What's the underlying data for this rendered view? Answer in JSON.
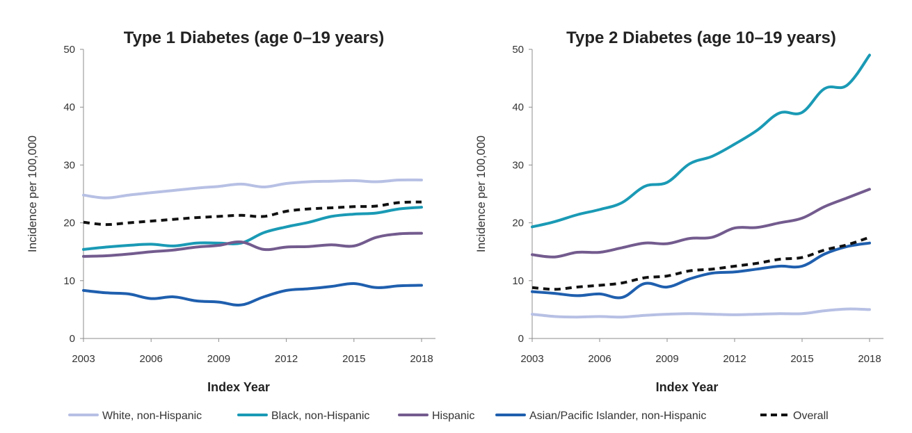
{
  "chart_data": [
    {
      "type": "line",
      "title": "Type 1 Diabetes (age 0–19 years)",
      "xlabel": "Index Year",
      "ylabel": "Incidence per 100,000",
      "xlim": [
        2003,
        2018
      ],
      "ylim": [
        0,
        50
      ],
      "xticks": [
        "2003",
        "2006",
        "2009",
        "2012",
        "2015",
        "2018"
      ],
      "yticks": [
        "0",
        "10",
        "20",
        "30",
        "40",
        "50"
      ],
      "x": [
        2003,
        2004,
        2005,
        2006,
        2007,
        2008,
        2009,
        2010,
        2011,
        2012,
        2013,
        2014,
        2015,
        2016,
        2017,
        2018
      ],
      "series": [
        {
          "name": "White, non-Hispanic",
          "color": "#b7c0e4",
          "dash": false,
          "values": [
            24.8,
            24.3,
            24.8,
            25.2,
            25.6,
            26.0,
            26.3,
            26.7,
            26.2,
            26.8,
            27.1,
            27.2,
            27.3,
            27.1,
            27.4,
            27.4
          ]
        },
        {
          "name": "Black, non-Hispanic",
          "color": "#1a9ab5",
          "dash": false,
          "values": [
            15.4,
            15.8,
            16.1,
            16.3,
            16.0,
            16.5,
            16.5,
            16.5,
            18.3,
            19.3,
            20.1,
            21.1,
            21.5,
            21.7,
            22.4,
            22.7
          ]
        },
        {
          "name": "Hispanic",
          "color": "#735b8e",
          "dash": false,
          "values": [
            14.2,
            14.3,
            14.6,
            15.0,
            15.3,
            15.8,
            16.1,
            16.7,
            15.4,
            15.8,
            15.9,
            16.2,
            16.0,
            17.5,
            18.1,
            18.2
          ]
        },
        {
          "name": "Asian/Pacific Islander, non-Hispanic",
          "color": "#1f5fae",
          "dash": false,
          "values": [
            8.3,
            7.9,
            7.7,
            6.9,
            7.2,
            6.5,
            6.3,
            5.8,
            7.2,
            8.3,
            8.6,
            9.0,
            9.5,
            8.8,
            9.1,
            9.2
          ]
        },
        {
          "name": "Overall",
          "color": "#111111",
          "dash": true,
          "values": [
            20.1,
            19.7,
            20.0,
            20.3,
            20.6,
            20.9,
            21.1,
            21.3,
            21.1,
            22.0,
            22.4,
            22.6,
            22.8,
            22.9,
            23.5,
            23.6
          ]
        }
      ]
    },
    {
      "type": "line",
      "title": "Type 2 Diabetes (age 10–19 years)",
      "xlabel": "Index Year",
      "ylabel": "Incidence per 100,000",
      "xlim": [
        2003,
        2018
      ],
      "ylim": [
        0,
        50
      ],
      "xticks": [
        "2003",
        "2006",
        "2009",
        "2012",
        "2015",
        "2018"
      ],
      "yticks": [
        "0",
        "10",
        "20",
        "30",
        "40",
        "50"
      ],
      "x": [
        2003,
        2004,
        2005,
        2006,
        2007,
        2008,
        2009,
        2010,
        2011,
        2012,
        2013,
        2014,
        2015,
        2016,
        2017,
        2018
      ],
      "series": [
        {
          "name": "White, non-Hispanic",
          "color": "#b7c0e4",
          "dash": false,
          "values": [
            4.2,
            3.8,
            3.7,
            3.8,
            3.7,
            4.0,
            4.2,
            4.3,
            4.2,
            4.1,
            4.2,
            4.3,
            4.3,
            4.8,
            5.1,
            5.0
          ]
        },
        {
          "name": "Black, non-Hispanic",
          "color": "#1a9ab5",
          "dash": false,
          "values": [
            19.3,
            20.2,
            21.4,
            22.3,
            23.5,
            26.3,
            27.0,
            30.2,
            31.5,
            33.6,
            36.0,
            39.0,
            39.1,
            43.2,
            43.8,
            49.0
          ]
        },
        {
          "name": "Hispanic",
          "color": "#735b8e",
          "dash": false,
          "values": [
            14.5,
            14.1,
            14.9,
            14.9,
            15.7,
            16.5,
            16.4,
            17.3,
            17.5,
            19.1,
            19.2,
            20.0,
            20.8,
            22.8,
            24.3,
            25.8
          ]
        },
        {
          "name": "Asian/Pacific Islander, non-Hispanic",
          "color": "#1f5fae",
          "dash": false,
          "values": [
            8.1,
            7.8,
            7.4,
            7.7,
            7.1,
            9.5,
            8.9,
            10.3,
            11.3,
            11.5,
            12.0,
            12.5,
            12.5,
            14.6,
            15.9,
            16.5
          ]
        },
        {
          "name": "Overall",
          "color": "#111111",
          "dash": true,
          "values": [
            8.8,
            8.5,
            8.9,
            9.2,
            9.6,
            10.5,
            10.8,
            11.7,
            12.0,
            12.5,
            13.0,
            13.7,
            14.0,
            15.3,
            16.2,
            17.5
          ]
        }
      ]
    }
  ],
  "legend": {
    "placement": "bottom",
    "items": [
      {
        "label": "White, non-Hispanic",
        "color": "#b7c0e4",
        "dash": false
      },
      {
        "label": "Black, non-Hispanic",
        "color": "#1a9ab5",
        "dash": false
      },
      {
        "label": "Hispanic",
        "color": "#735b8e",
        "dash": false
      },
      {
        "label": "Asian/Pacific Islander, non-Hispanic",
        "color": "#1f5fae",
        "dash": false
      },
      {
        "label": "Overall",
        "color": "#111111",
        "dash": true
      }
    ]
  }
}
